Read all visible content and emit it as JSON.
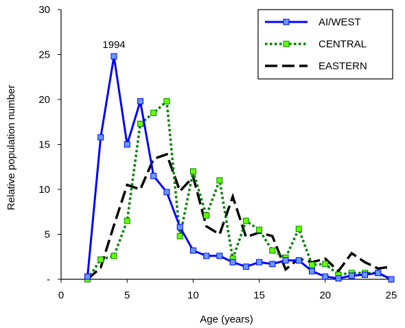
{
  "chart_data": {
    "type": "line",
    "title": "",
    "xlabel": "Age (years)",
    "ylabel": "Relative population number",
    "xlim": [
      0,
      25
    ],
    "ylim": [
      0,
      30
    ],
    "xticks": [
      0,
      5,
      10,
      15,
      20,
      25
    ],
    "yticks": [
      0,
      5,
      10,
      15,
      20,
      25,
      30
    ],
    "ytick_labels": [
      "-",
      "5",
      "10",
      "15",
      "20",
      "25",
      "30"
    ],
    "grid": false,
    "legend_position": "top-right",
    "annotations": [
      {
        "text": "1994",
        "x": 4,
        "y": 24.8
      }
    ],
    "series": [
      {
        "name": "AI/WEST",
        "color": "#0000ff",
        "marker_fill": "#6699ff",
        "line_style": "solid",
        "x": [
          2,
          3,
          4,
          5,
          6,
          7,
          8,
          9,
          10,
          11,
          12,
          13,
          14,
          15,
          16,
          17,
          18,
          19,
          20,
          21,
          22,
          23,
          24,
          25
        ],
        "y": [
          0.3,
          15.8,
          24.8,
          15.0,
          19.8,
          11.5,
          9.7,
          5.8,
          3.2,
          2.6,
          2.6,
          1.9,
          1.4,
          1.9,
          1.7,
          2.1,
          2.1,
          0.9,
          0.3,
          0.1,
          0.4,
          0.5,
          0.7,
          0.0
        ]
      },
      {
        "name": "CENTRAL",
        "color": "#008000",
        "marker_fill": "#66ff00",
        "line_style": "dotted",
        "x": [
          2,
          3,
          4,
          5,
          6,
          7,
          8,
          9,
          10,
          11,
          12,
          13,
          14,
          15,
          16,
          17,
          18,
          19,
          20,
          21,
          22,
          23,
          24,
          25
        ],
        "y": [
          0.0,
          2.2,
          2.6,
          6.5,
          17.3,
          18.5,
          19.8,
          4.8,
          12.0,
          7.1,
          11.0,
          2.3,
          6.5,
          5.5,
          3.2,
          2.4,
          5.6,
          1.6,
          1.7,
          0.5,
          0.7,
          0.7,
          0.7,
          0.0
        ]
      },
      {
        "name": "EASTERN",
        "color": "#000000",
        "line_style": "dashed",
        "x": [
          2,
          3,
          4,
          5,
          6,
          7,
          8,
          9,
          10,
          11,
          12,
          13,
          14,
          15,
          16,
          17,
          18,
          19,
          20,
          21,
          22,
          23,
          24,
          25
        ],
        "y": [
          0.0,
          1.3,
          6.0,
          10.5,
          10.0,
          13.4,
          13.9,
          9.8,
          11.4,
          5.9,
          5.0,
          9.2,
          4.7,
          5.2,
          4.8,
          1.1,
          2.3,
          1.9,
          2.3,
          0.9,
          2.9,
          1.9,
          1.2,
          1.4
        ]
      }
    ]
  }
}
